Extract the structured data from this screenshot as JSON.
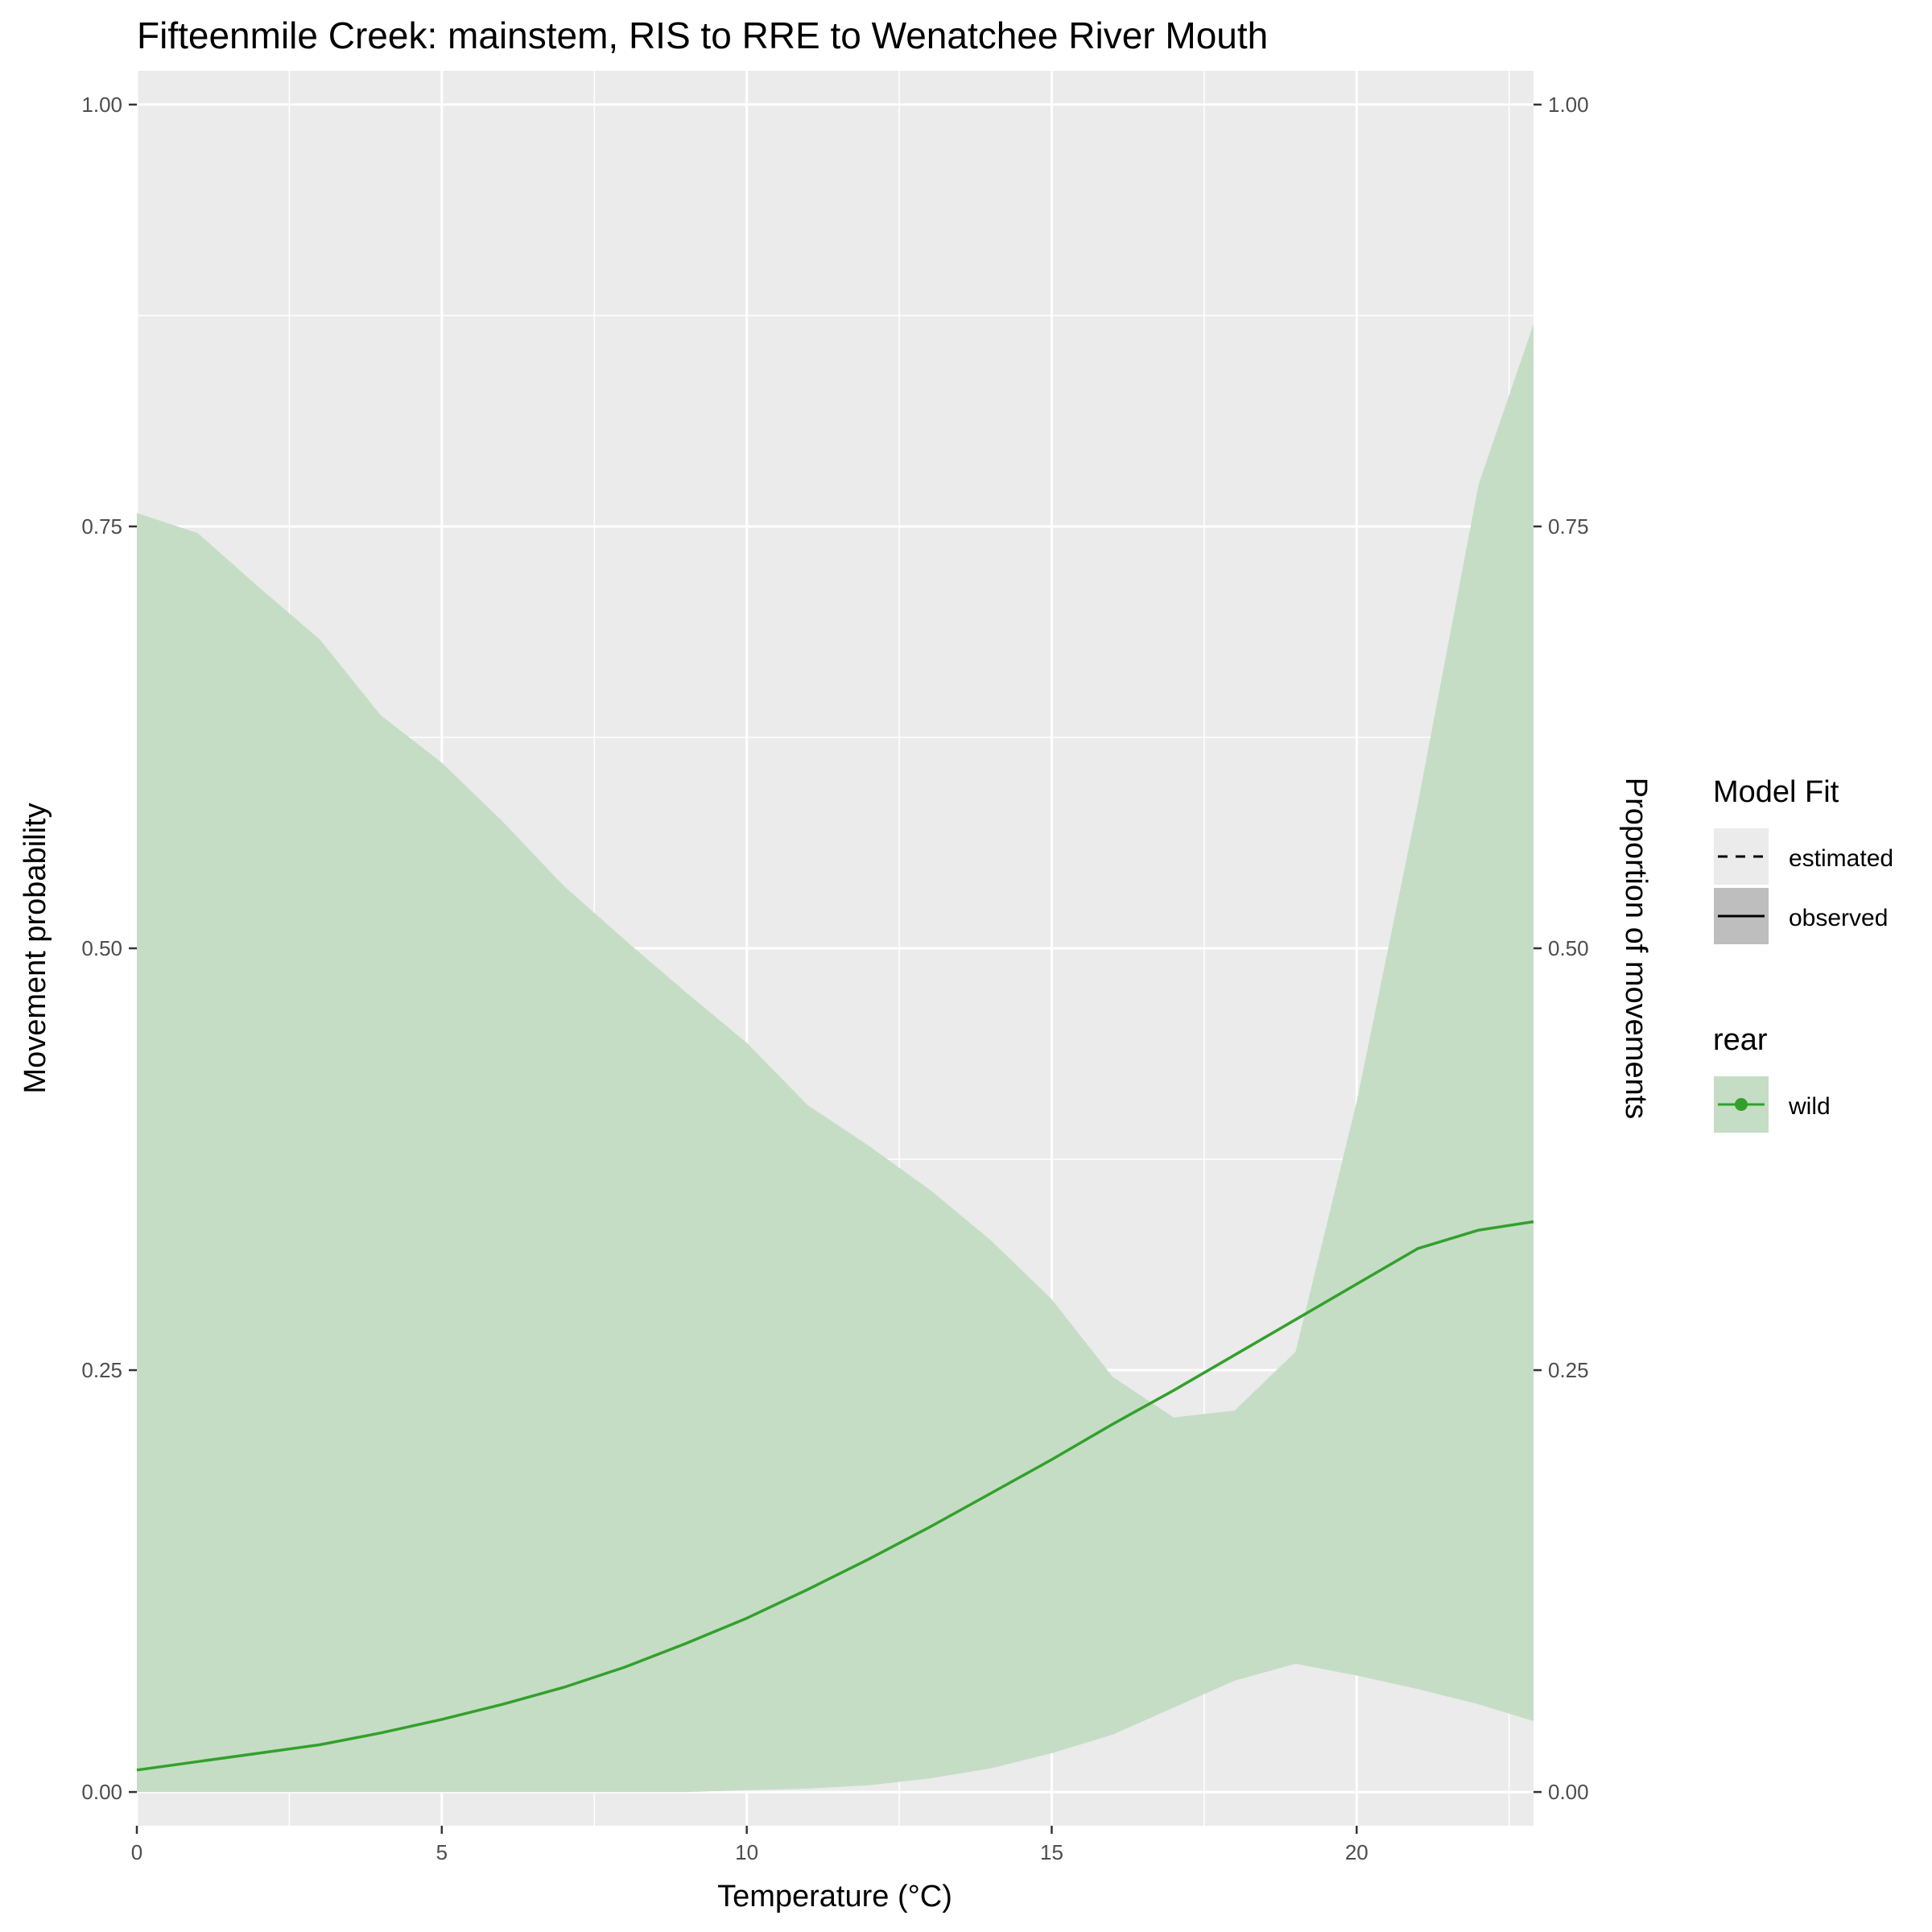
{
  "chart_data": {
    "type": "line",
    "title": "Fifteenmile Creek: mainstem, RIS to RRE to Wenatchee River Mouth",
    "xlabel": "Temperature (°C)",
    "ylabel": "Movement probability",
    "ylabel_right": "Proportion of movements",
    "xlim": [
      0,
      22.9
    ],
    "ylim": [
      -0.02,
      1.02
    ],
    "x_ticks": [
      0,
      5,
      10,
      15,
      20
    ],
    "x_tick_labels": [
      "0",
      "5",
      "10",
      "15",
      "20"
    ],
    "y_ticks": [
      0,
      0.25,
      0.5,
      0.75,
      1.0
    ],
    "y_tick_labels": [
      "0.00",
      "0.25",
      "0.50",
      "0.75",
      "1.00"
    ],
    "grid": true,
    "series": [
      {
        "name": "wild",
        "color": "#33a02c",
        "ribbon_color": "#c5ddc5",
        "x": [
          0,
          1,
          2,
          3,
          4,
          5,
          6,
          7,
          8,
          9,
          10,
          11,
          12,
          13,
          14,
          15,
          16,
          17,
          18,
          19,
          20,
          21,
          22,
          22.9
        ],
        "estimate": [
          0.013,
          0.018,
          0.023,
          0.028,
          0.035,
          0.043,
          0.052,
          0.062,
          0.074,
          0.088,
          0.103,
          0.12,
          0.138,
          0.157,
          0.177,
          0.197,
          0.218,
          0.238,
          0.259,
          0.28,
          0.301,
          0.322,
          0.333,
          0.338
        ],
        "lower": [
          0.0,
          0.0,
          0.0,
          0.0,
          0.0,
          0.0,
          0.0,
          0.0,
          0.0,
          0.0,
          0.001,
          0.002,
          0.004,
          0.008,
          0.014,
          0.023,
          0.034,
          0.05,
          0.066,
          0.076,
          0.069,
          0.061,
          0.052,
          0.042
        ],
        "upper": [
          0.758,
          0.746,
          0.714,
          0.683,
          0.638,
          0.61,
          0.575,
          0.537,
          0.505,
          0.474,
          0.444,
          0.407,
          0.383,
          0.357,
          0.327,
          0.292,
          0.246,
          0.222,
          0.226,
          0.261,
          0.409,
          0.585,
          0.775,
          0.87
        ]
      }
    ],
    "legend": {
      "placement": "right",
      "groups": [
        {
          "title": "Model Fit",
          "entries": [
            {
              "label": "estimated",
              "style": "dashed"
            },
            {
              "label": "observed",
              "style": "solid"
            }
          ]
        },
        {
          "title": "rear",
          "entries": [
            {
              "label": "wild",
              "style": "point-line",
              "color": "#33a02c"
            }
          ]
        }
      ]
    }
  }
}
